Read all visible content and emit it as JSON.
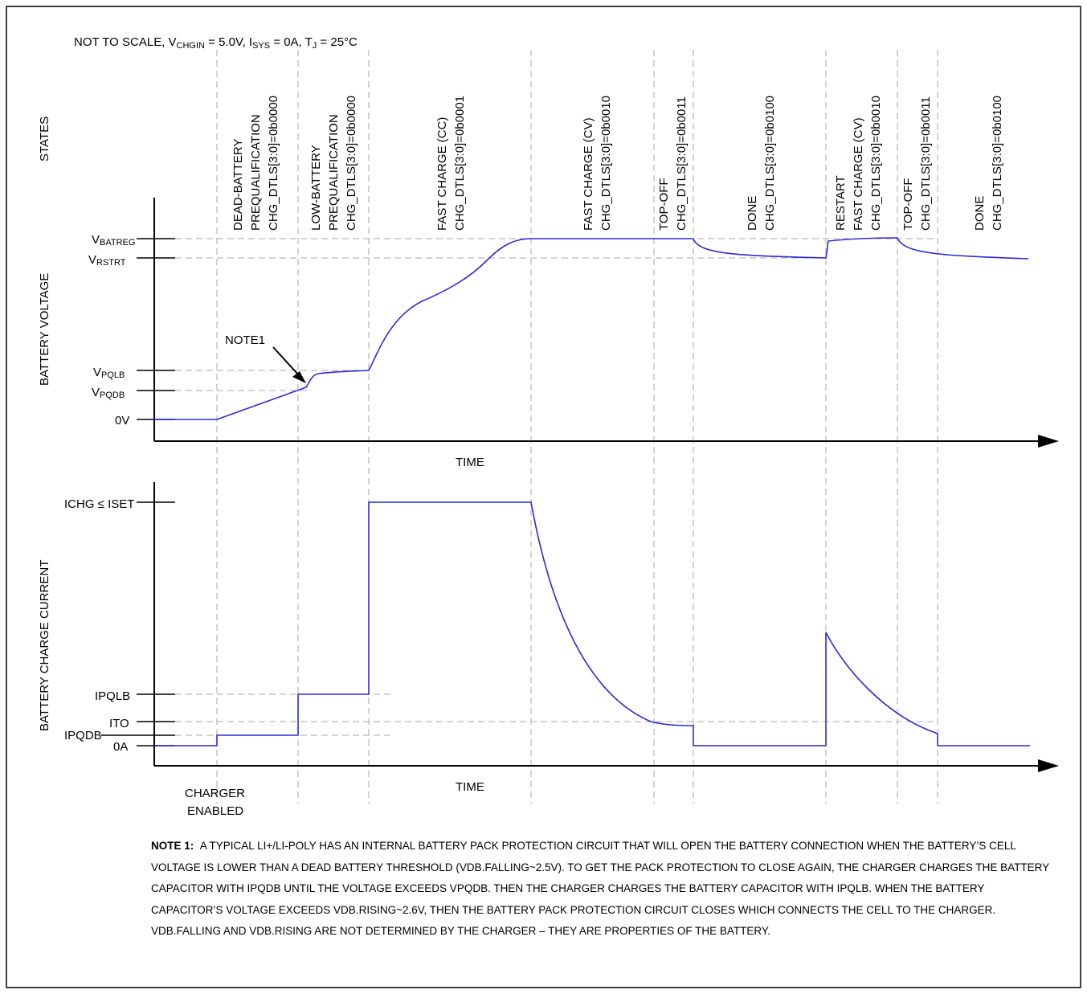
{
  "header": {
    "condition_note": "NOT TO SCALE, VCHGIN = 5.0V, ISYS = 0A, TJ = 25°C"
  },
  "axes": {
    "states_label": "STATES",
    "voltage_label": "BATTERY VOLTAGE",
    "current_label": "BATTERY CHARGE CURRENT",
    "time_label_top": "TIME",
    "time_label_bottom": "TIME"
  },
  "states": [
    {
      "lines": [
        "DEAD-BATTERY",
        "PREQUALIFICATION",
        "CHG_DTLS[3:0]=0b0000"
      ]
    },
    {
      "lines": [
        "LOW-BATTERY",
        "PREQUALIFICATION",
        "CHG_DTLS[3:0]=0b0000"
      ]
    },
    {
      "lines": [
        "FAST CHARGE (CC)",
        "CHG_DTLS[3:0]=0b0001"
      ]
    },
    {
      "lines": [
        "FAST CHARGE (CV)",
        "CHG_DTLS[3:0]=0b0010"
      ]
    },
    {
      "lines": [
        "TOP-OFF",
        "CHG_DTLS[3:0]=0b0011"
      ]
    },
    {
      "lines": [
        "DONE",
        "CHG_DTLS[3:0]=0b0100"
      ]
    },
    {
      "lines": [
        "RESTART",
        "FAST CHARGE (CV)",
        "CHG_DTLS[3:0]=0b0010"
      ]
    },
    {
      "lines": [
        "TOP-OFF",
        "CHG_DTLS[3:0]=0b0011"
      ]
    },
    {
      "lines": [
        "DONE",
        "CHG_DTLS[3:0]=0b0100"
      ]
    }
  ],
  "voltage_levels": [
    {
      "main": "V",
      "sub": "BATREG"
    },
    {
      "main": "V",
      "sub": "RSTRT"
    },
    {
      "main": "V",
      "sub": "PQLB"
    },
    {
      "main": "V",
      "sub": "PQDB"
    },
    {
      "main": "0V",
      "sub": ""
    }
  ],
  "current_levels": {
    "ichg": "ICHG ≤ ISET",
    "ipqlb": "IPQLB",
    "ito": "ITO",
    "ipqdb": "IPQDB",
    "zero": "0A"
  },
  "annotations": {
    "note1_callout": "NOTE1",
    "charger_enabled_1": "CHARGER",
    "charger_enabled_2": "ENABLED"
  },
  "note": {
    "title": "NOTE 1:",
    "text": "A TYPICAL LI+/LI-POLY HAS AN INTERNAL BATTERY PACK PROTECTION CIRCUIT THAT WILL OPEN THE BATTERY CONNECTION WHEN THE BATTERY’S CELL VOLTAGE IS LOWER THAN A DEAD BATTERY THRESHOLD (VDB.FALLING~2.5V). TO GET THE PACK PROTECTION TO CLOSE AGAIN, THE CHARGER CHARGES THE BATTERY CAPACITOR WITH IPQDB UNTIL THE VOLTAGE EXCEEDS VPQDB. THEN THE CHARGER CHARGES THE BATTERY CAPACITOR WITH IPQLB. WHEN THE BATTERY CAPACITOR’S VOLTAGE EXCEEDS VDB.RISING~2.6V, THEN THE BATTERY PACK PROTECTION CIRCUIT CLOSES WHICH CONNECTS THE CELL TO THE CHARGER. VDB.FALLING AND VDB.RISING ARE NOT DETERMINED BY THE CHARGER – THEY ARE PROPERTIES OF THE BATTERY."
  },
  "colors": {
    "trace": "#2b2bd6",
    "guide": "#a8a8a8",
    "frame": "#000000"
  }
}
